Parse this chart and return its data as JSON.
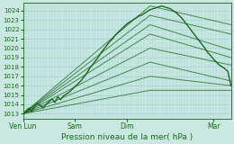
{
  "bg_color": "#c8e8e0",
  "grid_color": "#9ecece",
  "grid_color_minor": "#b4dcdc",
  "line_color": "#1a6620",
  "ylim": [
    1012.5,
    1024.8
  ],
  "yticks": [
    1013,
    1014,
    1015,
    1016,
    1017,
    1018,
    1019,
    1020,
    1021,
    1022,
    1023,
    1024
  ],
  "xlabel": "Pression niveau de la mer( hPa )",
  "xtick_labels": [
    "Ven Lun",
    "Sam",
    "Dim",
    "Mar"
  ],
  "xtick_positions": [
    0.0,
    0.25,
    0.5,
    0.917
  ],
  "xlim": [
    0.0,
    1.0
  ],
  "main_line_x": [
    0.0,
    0.014,
    0.028,
    0.042,
    0.056,
    0.069,
    0.083,
    0.097,
    0.111,
    0.125,
    0.139,
    0.153,
    0.167,
    0.181,
    0.194,
    0.208,
    0.222,
    0.236,
    0.25,
    0.264,
    0.278,
    0.292,
    0.306,
    0.319,
    0.333,
    0.347,
    0.361,
    0.375,
    0.389,
    0.403,
    0.417,
    0.431,
    0.444,
    0.458,
    0.472,
    0.486,
    0.5,
    0.514,
    0.528,
    0.542,
    0.556,
    0.569,
    0.583,
    0.597,
    0.611,
    0.625,
    0.639,
    0.653,
    0.667,
    0.681,
    0.694,
    0.708,
    0.722,
    0.736,
    0.75,
    0.764,
    0.778,
    0.792,
    0.806,
    0.819,
    0.833,
    0.847,
    0.861,
    0.875,
    0.889,
    0.903,
    0.917,
    0.931,
    0.944,
    0.958,
    0.972,
    0.986,
    1.0
  ],
  "main_line_y": [
    1013.0,
    1013.3,
    1013.6,
    1013.2,
    1013.8,
    1014.1,
    1013.9,
    1013.6,
    1014.0,
    1014.3,
    1014.6,
    1014.2,
    1014.8,
    1014.5,
    1014.9,
    1015.1,
    1015.3,
    1015.6,
    1015.9,
    1016.2,
    1016.5,
    1016.9,
    1017.3,
    1017.8,
    1018.2,
    1018.6,
    1019.0,
    1019.5,
    1019.9,
    1020.3,
    1020.7,
    1021.0,
    1021.4,
    1021.7,
    1022.0,
    1022.3,
    1022.6,
    1022.8,
    1023.0,
    1023.2,
    1023.4,
    1023.5,
    1023.7,
    1023.9,
    1024.1,
    1024.2,
    1024.3,
    1024.4,
    1024.5,
    1024.4,
    1024.3,
    1024.2,
    1024.0,
    1023.8,
    1023.5,
    1023.2,
    1022.8,
    1022.4,
    1022.0,
    1021.6,
    1021.2,
    1020.8,
    1020.4,
    1020.0,
    1019.5,
    1019.2,
    1018.8,
    1018.5,
    1018.2,
    1018.0,
    1017.8,
    1017.5,
    1016.0
  ],
  "forecast_lines": [
    {
      "x": [
        0.0,
        0.611,
        1.0
      ],
      "y": [
        1013.0,
        1024.5,
        1022.5
      ]
    },
    {
      "x": [
        0.0,
        0.611,
        1.0
      ],
      "y": [
        1013.0,
        1023.5,
        1021.5
      ]
    },
    {
      "x": [
        0.0,
        0.611,
        1.0
      ],
      "y": [
        1013.0,
        1022.5,
        1019.8
      ]
    },
    {
      "x": [
        0.0,
        0.611,
        1.0
      ],
      "y": [
        1013.0,
        1021.5,
        1019.0
      ]
    },
    {
      "x": [
        0.0,
        0.611,
        1.0
      ],
      "y": [
        1013.0,
        1020.0,
        1018.2
      ]
    },
    {
      "x": [
        0.0,
        0.611,
        1.0
      ],
      "y": [
        1013.0,
        1018.5,
        1016.5
      ]
    },
    {
      "x": [
        0.0,
        0.611,
        1.0
      ],
      "y": [
        1013.0,
        1017.0,
        1016.0
      ]
    },
    {
      "x": [
        0.0,
        0.611,
        1.0
      ],
      "y": [
        1013.0,
        1015.5,
        1015.5
      ]
    }
  ]
}
